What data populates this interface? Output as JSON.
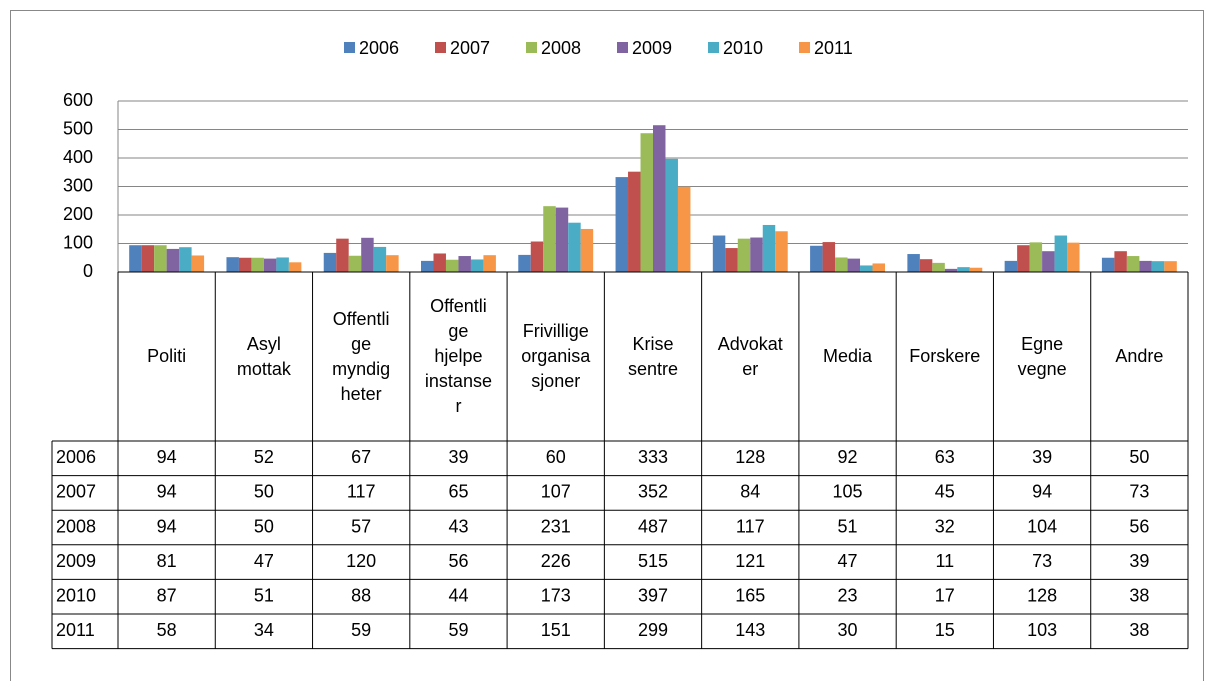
{
  "chart_data": {
    "type": "bar",
    "categories": [
      "Politi",
      "Asyl\nmottak",
      "Offentli\nge\nmyndig\nheter",
      "Offentli\nge\nhjelpe\ninstanse\nr",
      "Frivillige\norganisa\nsjoner",
      "Krise\nsentre",
      "Advokat\ner",
      "Media",
      "Forskere",
      "Egne\nvegne",
      "Andre"
    ],
    "series": [
      {
        "name": "2006",
        "color": "#4f81bd",
        "values": [
          94,
          52,
          67,
          39,
          60,
          333,
          128,
          92,
          63,
          39,
          50
        ]
      },
      {
        "name": "2007",
        "color": "#c0504d",
        "values": [
          94,
          50,
          117,
          65,
          107,
          352,
          84,
          105,
          45,
          94,
          73
        ]
      },
      {
        "name": "2008",
        "color": "#9bbb59",
        "values": [
          94,
          50,
          57,
          43,
          231,
          487,
          117,
          51,
          32,
          104,
          56
        ]
      },
      {
        "name": "2009",
        "color": "#8064a2",
        "values": [
          81,
          47,
          120,
          56,
          226,
          515,
          121,
          47,
          11,
          73,
          39
        ]
      },
      {
        "name": "2010",
        "color": "#4bacc6",
        "values": [
          87,
          51,
          88,
          44,
          173,
          397,
          165,
          23,
          17,
          128,
          38
        ]
      },
      {
        "name": "2011",
        "color": "#f79646",
        "values": [
          58,
          34,
          59,
          59,
          151,
          299,
          143,
          30,
          15,
          103,
          38
        ]
      }
    ],
    "ylim": [
      0,
      600
    ],
    "yticks": [
      0,
      100,
      200,
      300,
      400,
      500,
      600
    ],
    "grid": true,
    "legend": "top",
    "data_table": true
  }
}
